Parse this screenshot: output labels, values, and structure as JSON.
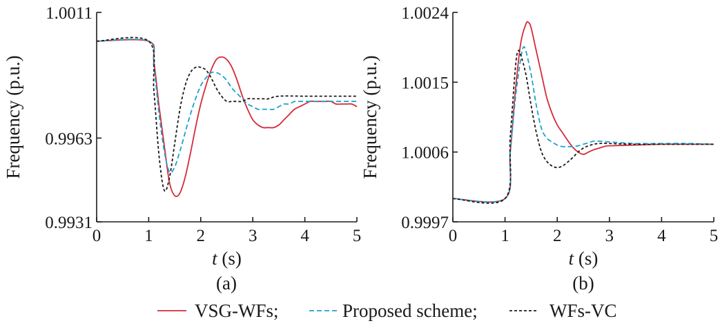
{
  "chart_data": [
    {
      "type": "line",
      "panel_label": "(a)",
      "xlabel_italic": "t",
      "xlabel_rest": " (s)",
      "ylabel": "Frequency (p.u.)",
      "xlim": [
        0,
        5
      ],
      "ylim": [
        0.9931,
        1.0011
      ],
      "xticks": [
        "0",
        "1",
        "2",
        "3",
        "4",
        "5"
      ],
      "yticks": [
        "0.9931",
        "0.9963",
        "1.0011"
      ],
      "ytick_values": [
        0.9931,
        0.9963,
        1.0011
      ],
      "grid": false,
      "series": [
        {
          "name": "VSG-WFs",
          "color": "#d42a37",
          "dash": "solid",
          "x": [
            0,
            1.0,
            1.1,
            1.2,
            1.3,
            1.4,
            1.5,
            1.6,
            1.7,
            1.8,
            1.9,
            2.0,
            2.1,
            2.2,
            2.3,
            2.4,
            2.5,
            2.6,
            2.7,
            2.8,
            2.9,
            3.0,
            3.1,
            3.2,
            3.3,
            3.4,
            3.5,
            3.6,
            3.7,
            3.8,
            3.9,
            4.0,
            4.1,
            4.2,
            4.3,
            4.4,
            4.5,
            4.6,
            4.7,
            4.8,
            4.9,
            5.0
          ],
          "y": [
            1.0,
            1.0,
            0.9992,
            0.9975,
            0.996,
            0.9946,
            0.9941,
            0.9942,
            0.9948,
            0.9957,
            0.9967,
            0.9976,
            0.9983,
            0.9989,
            0.9993,
            0.9994,
            0.9993,
            0.999,
            0.9985,
            0.9979,
            0.9974,
            0.997,
            0.9968,
            0.9967,
            0.9967,
            0.9967,
            0.9968,
            0.997,
            0.9972,
            0.9974,
            0.9975,
            0.9976,
            0.9977,
            0.9977,
            0.9977,
            0.9977,
            0.9977,
            0.9976,
            0.9976,
            0.9976,
            0.9976,
            0.9975
          ]
        },
        {
          "name": "Proposed scheme",
          "color": "#1aa3c9",
          "dash": "7,4",
          "x": [
            0,
            1.0,
            1.1,
            1.2,
            1.3,
            1.4,
            1.5,
            1.6,
            1.7,
            1.8,
            1.9,
            2.0,
            2.1,
            2.2,
            2.3,
            2.4,
            2.5,
            2.6,
            2.7,
            2.8,
            2.9,
            3.0,
            3.1,
            3.2,
            3.3,
            3.4,
            3.5,
            3.6,
            3.7,
            3.8,
            3.9,
            4.0,
            4.5,
            5.0
          ],
          "y": [
            1.0,
            1.0,
            0.999,
            0.9972,
            0.9958,
            0.995,
            0.9952,
            0.9958,
            0.9965,
            0.9972,
            0.9978,
            0.9983,
            0.9986,
            0.9988,
            0.9988,
            0.9987,
            0.9985,
            0.9982,
            0.998,
            0.9978,
            0.9976,
            0.9975,
            0.9974,
            0.9974,
            0.9974,
            0.9974,
            0.9975,
            0.9976,
            0.9976,
            0.9977,
            0.9977,
            0.9977,
            0.9977,
            0.9977
          ]
        },
        {
          "name": "WFs-VC",
          "color": "#1a1a1a",
          "dash": "4,3",
          "x": [
            0,
            1.0,
            1.1,
            1.2,
            1.3,
            1.4,
            1.5,
            1.6,
            1.7,
            1.8,
            1.9,
            2.0,
            2.1,
            2.2,
            2.3,
            2.4,
            2.5,
            2.6,
            2.7,
            2.8,
            2.9,
            3.0,
            3.1,
            3.2,
            3.3,
            3.5,
            4.0,
            4.5,
            5.0
          ],
          "y": [
            1.0,
            1.0,
            0.9981,
            0.9956,
            0.9943,
            0.9948,
            0.9961,
            0.9974,
            0.9983,
            0.9988,
            0.999,
            0.999,
            0.9989,
            0.9986,
            0.9982,
            0.9979,
            0.9977,
            0.9977,
            0.9977,
            0.9977,
            0.9978,
            0.9978,
            0.9978,
            0.9978,
            0.9978,
            0.9979,
            0.9979,
            0.9979,
            0.9979
          ]
        }
      ]
    },
    {
      "type": "line",
      "panel_label": "(b)",
      "xlabel_italic": "t",
      "xlabel_rest": " (s)",
      "ylabel": "Frequency (p.u.)",
      "xlim": [
        0,
        5
      ],
      "ylim": [
        0.9997,
        1.0024
      ],
      "xticks": [
        "0",
        "1",
        "2",
        "3",
        "4",
        "5"
      ],
      "yticks": [
        "0.9997",
        "1.0006",
        "1.0015",
        "1.0024"
      ],
      "ytick_values": [
        0.9997,
        1.0006,
        1.0015,
        1.0024
      ],
      "grid": false,
      "series": [
        {
          "name": "VSG-WFs",
          "color": "#d42a37",
          "dash": "solid",
          "x": [
            0,
            1.0,
            1.1,
            1.2,
            1.3,
            1.4,
            1.45,
            1.5,
            1.6,
            1.7,
            1.8,
            1.9,
            2.0,
            2.1,
            2.2,
            2.3,
            2.4,
            2.5,
            2.6,
            2.7,
            2.8,
            2.9,
            3.0,
            3.5,
            4.0,
            4.5,
            5.0
          ],
          "y": [
            1.0,
            1.0,
            1.0006,
            1.0014,
            1.002,
            1.00225,
            1.00227,
            1.0022,
            1.0019,
            1.0016,
            1.0013,
            1.0011,
            1.00095,
            1.00085,
            1.00075,
            1.00066,
            1.0006,
            1.00057,
            1.0006,
            1.00063,
            1.00065,
            1.00067,
            1.00068,
            1.00069,
            1.0007,
            1.0007,
            1.0007
          ]
        },
        {
          "name": "Proposed scheme",
          "color": "#1aa3c9",
          "dash": "7,4",
          "x": [
            0,
            1.0,
            1.1,
            1.2,
            1.3,
            1.35,
            1.4,
            1.5,
            1.6,
            1.7,
            1.8,
            1.9,
            2.0,
            2.1,
            2.2,
            2.3,
            2.4,
            2.5,
            2.6,
            2.7,
            2.8,
            3.0,
            3.5,
            4.0,
            4.5,
            5.0
          ],
          "y": [
            1.0,
            1.0,
            1.0006,
            1.0013,
            1.0018,
            1.00195,
            1.0019,
            1.0016,
            1.0012,
            1.0009,
            1.00078,
            1.00073,
            1.00069,
            1.00067,
            1.00067,
            1.00067,
            1.00068,
            1.0007,
            1.00072,
            1.00074,
            1.00074,
            1.00073,
            1.00071,
            1.00071,
            1.00071,
            1.0007
          ]
        },
        {
          "name": "WFs-VC",
          "color": "#1a1a1a",
          "dash": "4,3",
          "x": [
            0,
            1.0,
            1.1,
            1.2,
            1.25,
            1.3,
            1.4,
            1.5,
            1.6,
            1.7,
            1.8,
            1.9,
            2.0,
            2.1,
            2.2,
            2.3,
            2.4,
            2.5,
            2.6,
            2.7,
            2.8,
            3.0,
            3.5,
            4.0,
            4.5,
            5.0
          ],
          "y": [
            1.0,
            1.0,
            1.0008,
            1.0017,
            1.0019,
            1.00185,
            1.0016,
            1.0012,
            1.00085,
            1.0006,
            1.00048,
            1.00042,
            1.0004,
            1.00042,
            1.00047,
            1.00053,
            1.0006,
            1.00065,
            1.00068,
            1.0007,
            1.00071,
            1.00071,
            1.0007,
            1.0007,
            1.0007,
            1.0007
          ]
        }
      ]
    }
  ],
  "legend": {
    "items": [
      {
        "label": "VSG-WFs;",
        "color": "#d42a37",
        "dash": "solid"
      },
      {
        "label": "Proposed scheme;",
        "color": "#1aa3c9",
        "dash": "7,4"
      },
      {
        "label": "WFs-VC",
        "color": "#1a1a1a",
        "dash": "4,3"
      }
    ]
  }
}
